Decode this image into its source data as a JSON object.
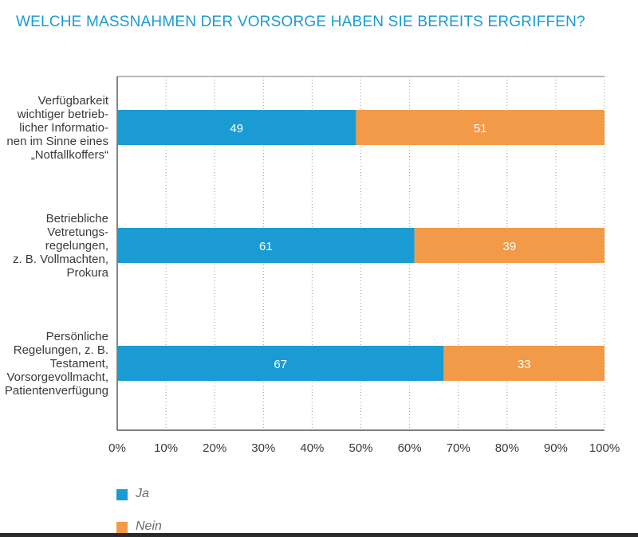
{
  "chart_data": {
    "type": "bar",
    "orientation": "horizontal",
    "stacked": true,
    "title": "WELCHE MASSNAHMEN DER VORSORGE HABEN SIE BEREITS ERGRIFFEN?",
    "categories": [
      [
        "Verfügbarkeit",
        "wichtiger betrieb-",
        "licher Informatio-",
        "nen im Sinne eines",
        "„Notfallkoffers“"
      ],
      [
        "Betriebliche",
        "Vetretungs-",
        "regelungen,",
        "z. B. Vollmachten,",
        "Prokura"
      ],
      [
        "Persönliche",
        "Regelungen, z. B.",
        "Testament,",
        "Vorsorgevollmacht,",
        "Patientenverfügung"
      ]
    ],
    "series": [
      {
        "name": "Ja",
        "values": [
          49,
          61,
          67
        ],
        "color": "#1a9bd3"
      },
      {
        "name": "Nein",
        "values": [
          51,
          39,
          33
        ],
        "color": "#f29a48"
      }
    ],
    "xlim": [
      0,
      100
    ],
    "xticks": [
      "0%",
      "10%",
      "20%",
      "30%",
      "40%",
      "50%",
      "60%",
      "70%",
      "80%",
      "90%",
      "100%"
    ],
    "grid": true,
    "legend_placement": "bottom-left"
  }
}
